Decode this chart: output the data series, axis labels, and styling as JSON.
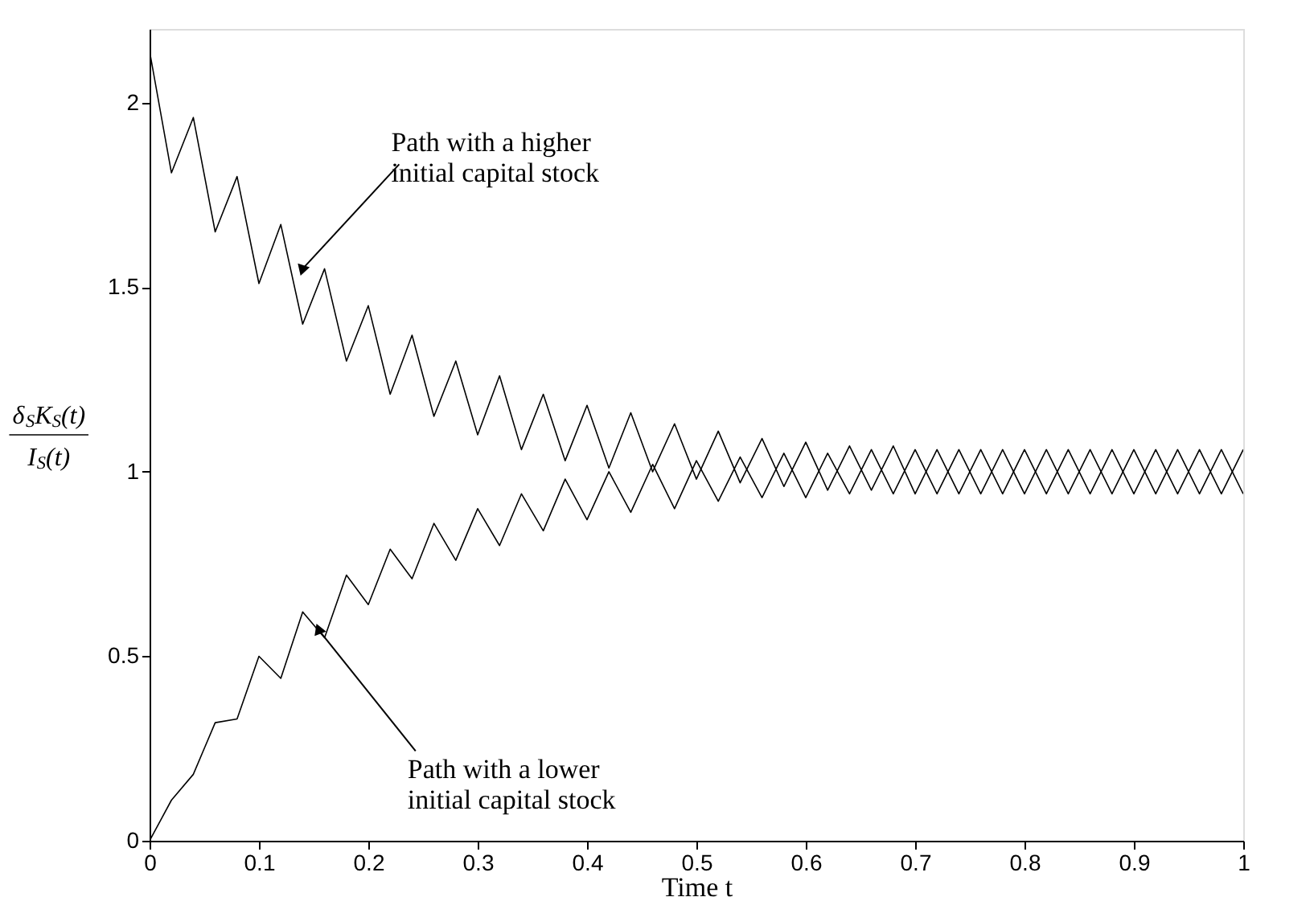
{
  "chart_data": {
    "type": "line",
    "xlabel": "Time t",
    "ylabel": "δ$_{S}$K$_{S}$(t)\nI$_{S}$(t)",
    "x": [
      0,
      0.02,
      0.04,
      0.06,
      0.08,
      0.1,
      0.12,
      0.14,
      0.16,
      0.18,
      0.2,
      0.22,
      0.24,
      0.26,
      0.28,
      0.3,
      0.32,
      0.34,
      0.36,
      0.38,
      0.4,
      0.42,
      0.44,
      0.46,
      0.48,
      0.5,
      0.52,
      0.54,
      0.56,
      0.58,
      0.6,
      0.62,
      0.64,
      0.66,
      0.68,
      0.7,
      0.72,
      0.74,
      0.76,
      0.78,
      0.8,
      0.82,
      0.84,
      0.86,
      0.88,
      0.9,
      0.92,
      0.94,
      0.96,
      0.98,
      1
    ],
    "series": [
      {
        "color": "#000000",
        "values": [
          2.14,
          1.81,
          1.96,
          1.65,
          1.8,
          1.51,
          1.67,
          1.4,
          1.55,
          1.3,
          1.45,
          1.21,
          1.37,
          1.15,
          1.3,
          1.1,
          1.26,
          1.06,
          1.21,
          1.03,
          1.18,
          1.01,
          1.16,
          1.0,
          1.13,
          0.98,
          1.11,
          0.97,
          1.09,
          0.96,
          1.08,
          0.95,
          1.07,
          0.95,
          1.07,
          0.94,
          1.06,
          0.94,
          1.06,
          0.94,
          1.06,
          0.94,
          1.06,
          0.94,
          1.06,
          0.94,
          1.06,
          0.94,
          1.06,
          0.94,
          1.06
        ]
      },
      {
        "color": "#000000",
        "values": [
          0,
          0.11,
          0.18,
          0.32,
          0.33,
          0.5,
          0.44,
          0.62,
          0.55,
          0.72,
          0.64,
          0.79,
          0.71,
          0.86,
          0.76,
          0.9,
          0.8,
          0.94,
          0.84,
          0.98,
          0.87,
          1.0,
          0.89,
          1.02,
          0.9,
          1.03,
          0.92,
          1.04,
          0.93,
          1.05,
          0.93,
          1.05,
          0.94,
          1.06,
          0.94,
          1.06,
          0.94,
          1.06,
          0.94,
          1.06,
          0.94,
          1.06,
          0.94,
          1.06,
          0.94,
          1.06,
          0.94,
          1.06,
          0.94,
          1.06,
          0.94
        ]
      }
    ],
    "xlim": [
      0,
      1
    ],
    "xticks": [
      0,
      0.1,
      0.2,
      0.3,
      0.4,
      0.5,
      0.6,
      0.7,
      0.8,
      0.9,
      1
    ],
    "ylim": [
      0,
      2.2
    ],
    "yticks": [
      0,
      0.5,
      1,
      1.5,
      2
    ],
    "grid": false,
    "legend": false,
    "marker": "none",
    "line_style": "solid",
    "annotations": [
      {
        "text": "Path with a higher\ninitial capital stock",
        "x": 0.14,
        "y": 1.55
      },
      {
        "text": "Path with a lower\ninitial capital stock",
        "x": 0.155,
        "y": 0.57
      }
    ]
  }
}
